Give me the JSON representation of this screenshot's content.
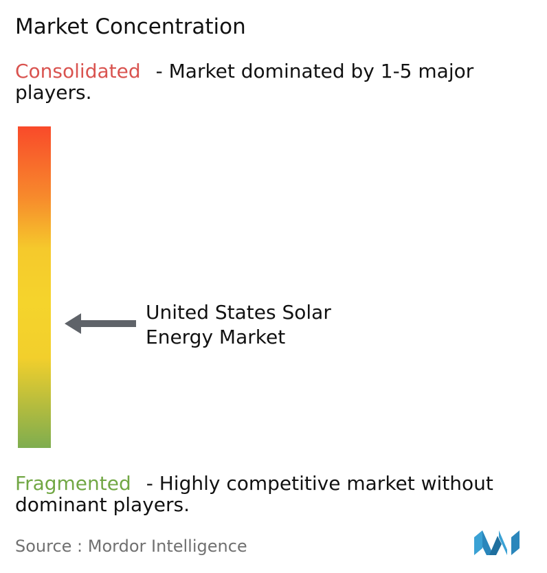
{
  "title": "Market Concentration",
  "consolidated": {
    "label": "Consolidated",
    "description": "- Market dominated by 1-5 major players."
  },
  "fragmented": {
    "label": "Fragmented",
    "description": "- Highly competitive market without dominant players."
  },
  "market": {
    "name_line1": "United States Solar",
    "name_line2": "Energy Market"
  },
  "source": "Source : Mordor Intelligence",
  "logo": {
    "icon": "mordor-intelligence-logo-icon",
    "colors": [
      "#3aa1d4",
      "#1f6f9e"
    ]
  },
  "colors": {
    "consolidated": "#d9534f",
    "fragmented": "#71a744",
    "scale_top": "#f94a2a",
    "scale_middle": "#f5d42c",
    "scale_bottom": "#7ead4f",
    "arrow": "#5f6369"
  },
  "chart_data": {
    "type": "concentration-scale",
    "scale": {
      "top_label": "Consolidated",
      "bottom_label": "Fragmented",
      "range": [
        0,
        1
      ]
    },
    "marker": {
      "label": "United States Solar Energy Market",
      "concentration": 0.4
    }
  }
}
